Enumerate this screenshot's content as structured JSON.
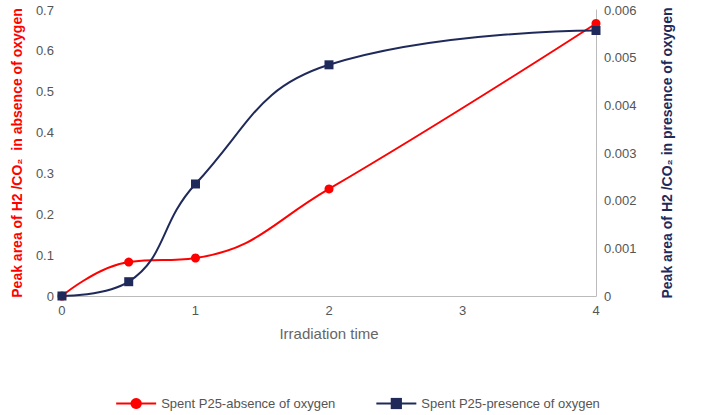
{
  "chart_data": {
    "type": "line",
    "x_label": "Irradiation time",
    "y_label": "Peak area of H2 /CO₂  in absence of oxygen",
    "y2_label": "Peak area of H2 /CO₂ in presence of oxygen",
    "x": [
      0,
      0.5,
      1,
      2,
      4
    ],
    "xlim": [
      0,
      4
    ],
    "xticks": [
      0,
      1,
      2,
      3,
      4
    ],
    "ylim": [
      0,
      0.7
    ],
    "yticks": [
      0,
      0.1,
      0.2,
      0.3,
      0.4,
      0.5,
      0.6,
      0.7
    ],
    "y2lim": [
      0,
      0.006
    ],
    "y2ticks": [
      0,
      0.001,
      0.002,
      0.003,
      0.004,
      0.005,
      0.006
    ],
    "grid": false,
    "legend": "bottom",
    "series": [
      {
        "name": "Spent P25-absence of oxygen",
        "color": "#ff0000",
        "values": [
          0,
          0.083,
          0.093,
          0.262,
          0.667
        ],
        "marker": "circle",
        "line_style": "smooth"
      },
      {
        "name": "Spent P25-presence of oxygen",
        "color": "#1f2a5a",
        "values": [
          0,
          0.0003,
          0.00235,
          0.00485,
          0.00557
        ],
        "marker": "square",
        "line_style": "smooth",
        "axis": "y2"
      }
    ]
  }
}
